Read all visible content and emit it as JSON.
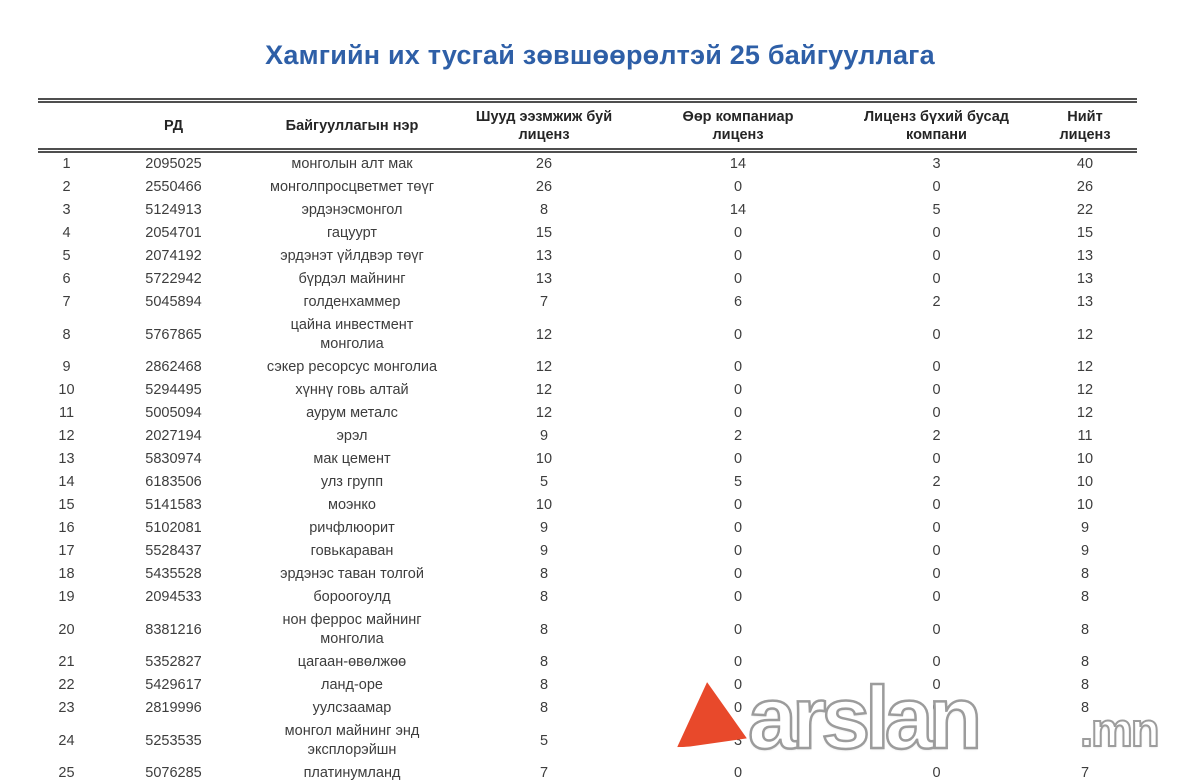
{
  "title": "Хамгийн их тусгай зөвшөөрөлтэй 25 байгууллага",
  "table": {
    "columns": [
      "",
      "РД",
      "Байгууллагын нэр",
      "Шууд ээзмжиж буй\nлиценз",
      "Өөр компаниар\nлиценз",
      "Лиценз бүхий бусад\nкомпани",
      "Нийт\nлиценз"
    ],
    "rows": [
      [
        "1",
        "2095025",
        "монголын алт мак",
        "26",
        "14",
        "3",
        "40"
      ],
      [
        "2",
        "2550466",
        "монголпросцветмет төүг",
        "26",
        "0",
        "0",
        "26"
      ],
      [
        "3",
        "5124913",
        "эрдэнэсмонгол",
        "8",
        "14",
        "5",
        "22"
      ],
      [
        "4",
        "2054701",
        "гацуурт",
        "15",
        "0",
        "0",
        "15"
      ],
      [
        "5",
        "2074192",
        "эрдэнэт үйлдвэр төүг",
        "13",
        "0",
        "0",
        "13"
      ],
      [
        "6",
        "5722942",
        "бүрдэл майнинг",
        "13",
        "0",
        "0",
        "13"
      ],
      [
        "7",
        "5045894",
        "голденхаммер",
        "7",
        "6",
        "2",
        "13"
      ],
      [
        "8",
        "5767865",
        "цайна инвестмент\nмонголиа",
        "12",
        "0",
        "0",
        "12"
      ],
      [
        "9",
        "2862468",
        "сэкер ресорсус монголиа",
        "12",
        "0",
        "0",
        "12"
      ],
      [
        "10",
        "5294495",
        "хүннү говь алтай",
        "12",
        "0",
        "0",
        "12"
      ],
      [
        "11",
        "5005094",
        "аурум металс",
        "12",
        "0",
        "0",
        "12"
      ],
      [
        "12",
        "2027194",
        "эрэл",
        "9",
        "2",
        "2",
        "11"
      ],
      [
        "13",
        "5830974",
        "мак цемент",
        "10",
        "0",
        "0",
        "10"
      ],
      [
        "14",
        "6183506",
        "улз групп",
        "5",
        "5",
        "2",
        "10"
      ],
      [
        "15",
        "5141583",
        "моэнко",
        "10",
        "0",
        "0",
        "10"
      ],
      [
        "16",
        "5102081",
        "ричфлюорит",
        "9",
        "0",
        "0",
        "9"
      ],
      [
        "17",
        "5528437",
        "говькараван",
        "9",
        "0",
        "0",
        "9"
      ],
      [
        "18",
        "5435528",
        "эрдэнэс таван толгой",
        "8",
        "0",
        "0",
        "8"
      ],
      [
        "19",
        "2094533",
        "бороогоулд",
        "8",
        "0",
        "0",
        "8"
      ],
      [
        "20",
        "8381216",
        "нон феррос майнинг\nмонголиа",
        "8",
        "0",
        "0",
        "8"
      ],
      [
        "21",
        "5352827",
        "цагаан-өвөлжөө",
        "8",
        "0",
        "0",
        "8"
      ],
      [
        "22",
        "5429617",
        "ланд-оре",
        "8",
        "0",
        "0",
        "8"
      ],
      [
        "23",
        "2819996",
        "уулсзаамар",
        "8",
        "0",
        "0",
        "8"
      ],
      [
        "24",
        "5253535",
        "монгол майнинг энд\nэксплорэйшн",
        "5",
        "3",
        "",
        ""
      ],
      [
        "25",
        "5076285",
        "платинумланд",
        "7",
        "0",
        "0",
        "7"
      ]
    ]
  },
  "watermark": {
    "brand": "arslan",
    "tld": ".mn",
    "triangle_color": "#E8492B",
    "text_fill": "#FFFFFF",
    "text_outline": "#9C9C9C"
  },
  "colors": {
    "title": "#2E5FA7",
    "body_text": "#3D3D3D",
    "border": "#4F4F4F"
  }
}
